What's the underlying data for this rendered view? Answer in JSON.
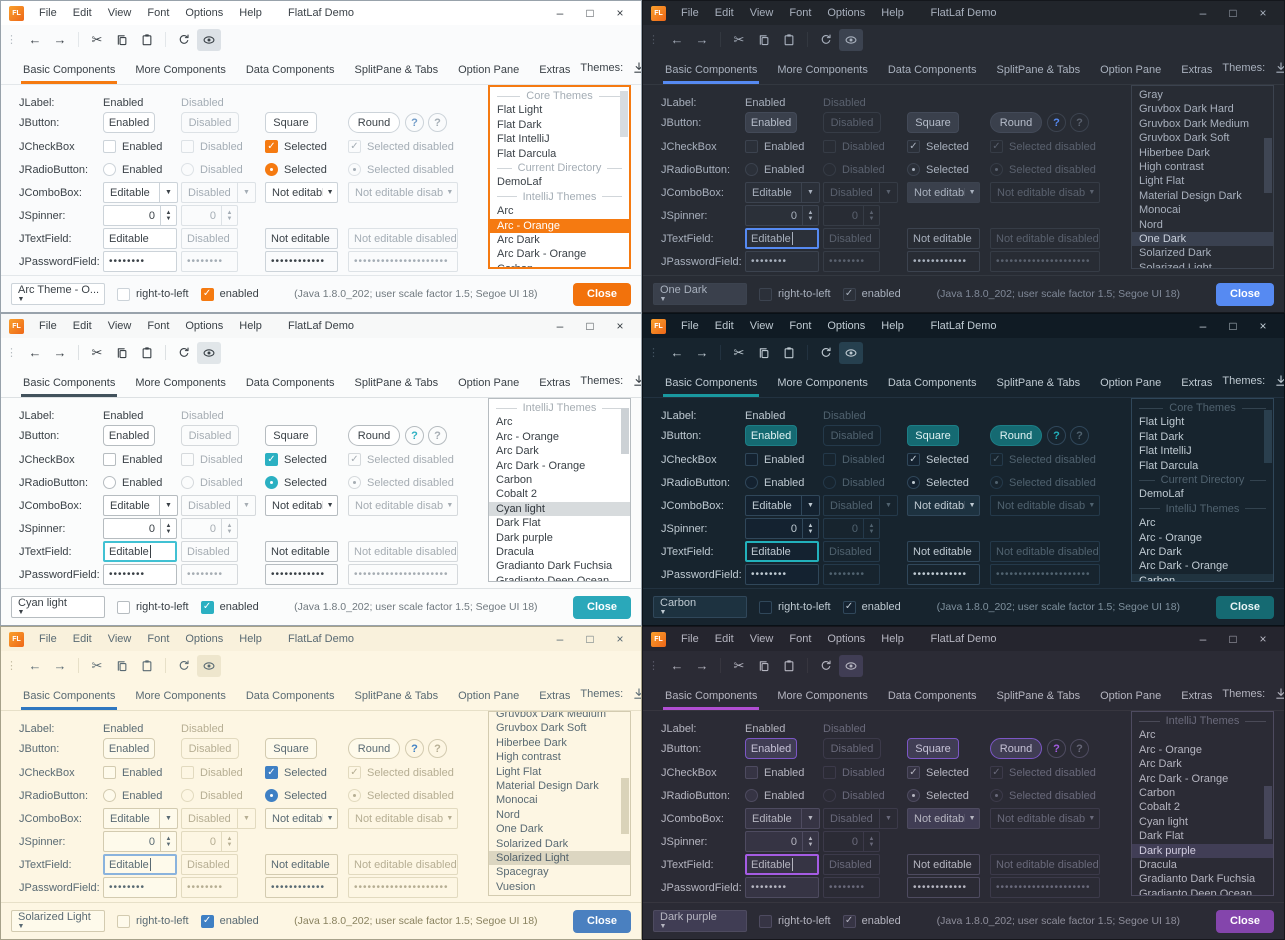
{
  "shared": {
    "logo_text": "FL",
    "window_title": "FlatLaf Demo",
    "menus": [
      "File",
      "Edit",
      "View",
      "Font",
      "Options",
      "Help"
    ],
    "window_controls": {
      "minimize": "–",
      "maximize": "□",
      "close": "×"
    },
    "tabs": [
      "Basic Components",
      "More Components",
      "Data Components",
      "SplitPane & Tabs",
      "Option Pane",
      "Extras"
    ],
    "active_tab": "Basic Components",
    "themes_label": "Themes:",
    "theme_filter": "all",
    "glyphs": {
      "menu_grip": "⋮",
      "back": "←",
      "forward": "→",
      "cut": "✂",
      "check": "✓",
      "combo_arrow": "▼",
      "spinner_up": "▲",
      "spinner_down": "▼",
      "help": "?"
    },
    "grid": {
      "jlabel": {
        "label": "JLabel:",
        "cells": [
          "Enabled",
          "Disabled"
        ]
      },
      "jbutton": {
        "label": "JButton:",
        "cells": [
          "Enabled",
          "Disabled",
          "Square",
          "Round"
        ],
        "help": "?"
      },
      "jcheckbox": {
        "label": "JCheckBox",
        "cells": [
          "Enabled",
          "Disabled",
          "Selected",
          "Selected disabled"
        ]
      },
      "jradiobutton": {
        "label": "JRadioButton:",
        "cells": [
          "Enabled",
          "Disabled",
          "Selected",
          "Selected disabled"
        ]
      },
      "jcombobox": {
        "label": "JComboBox:",
        "cells": [
          "Editable",
          "Disabled",
          "Not editable",
          "Not editable disabled"
        ]
      },
      "jspinner": {
        "label": "JSpinner:",
        "cells": [
          "0",
          "0"
        ]
      },
      "jtextfield": {
        "label": "JTextField:",
        "cells": [
          "Editable",
          "Disabled",
          "Not editable",
          "Not editable disabled"
        ]
      },
      "jpasswordfield": {
        "label": "JPasswordField:",
        "cells": [
          "••••••••",
          "••••••••",
          "••••••••••••",
          "•••••••••••••••••••••"
        ]
      }
    },
    "footer": {
      "rtl_label": "right-to-left",
      "enabled_label": "enabled",
      "status": "(Java 1.8.0_202;  user scale factor 1.5; Segoe UI 18)",
      "close_label": "Close"
    }
  },
  "windows": [
    {
      "id": "arc-orange",
      "theme_name": "Arc - Orange",
      "dark": false,
      "footer_combo": "Arc Theme - O...",
      "textfield_focused": false,
      "caret": false,
      "list_focused": true,
      "list": {
        "selected": "Arc - Orange",
        "thumb": [
          1,
          26
        ],
        "scroll_cut": false,
        "items": [
          {
            "type": "header",
            "label": "Core Themes"
          },
          {
            "type": "item",
            "label": "Flat Light"
          },
          {
            "type": "item",
            "label": "Flat Dark"
          },
          {
            "type": "item",
            "label": "Flat IntelliJ"
          },
          {
            "type": "item",
            "label": "Flat Darcula"
          },
          {
            "type": "header",
            "label": "Current Directory"
          },
          {
            "type": "item",
            "label": "DemoLaf"
          },
          {
            "type": "header",
            "label": "IntelliJ Themes"
          },
          {
            "type": "item",
            "label": "Arc"
          },
          {
            "type": "item",
            "label": "Arc - Orange",
            "selected": true
          },
          {
            "type": "item",
            "label": "Arc Dark"
          },
          {
            "type": "item",
            "label": "Arc Dark - Orange"
          },
          {
            "type": "item",
            "label": "Carbon"
          }
        ]
      },
      "colors": {
        "bg": "#fafbfc",
        "titlebar": "#ffffff",
        "text": "#3b4248",
        "muted": "#a4adb5",
        "accent": "#f57a11",
        "tabline": "#f57a11",
        "btn_bg": "#ffffff",
        "btn_border": "#ccd3d9",
        "btn_text": "#3b4248",
        "dis_border": "#dde2e6",
        "ctrl_border": "#ccd3d9",
        "ctrl_bg": "#ffffff",
        "field_bg": "#ffffff",
        "list_bg": "#ffffff",
        "sel_bg": "#f57a11",
        "sel_text": "#ffffff",
        "close_bg": "#f2720c",
        "close_text": "#ffffff",
        "focus": "#f57a11",
        "thumb": "#d7dce0",
        "sep": "#e3e7ea",
        "toggle": "#dce1e6",
        "help": "#6f9ac8",
        "win_border": "#98a2ab",
        "status": "#70797f"
      }
    },
    {
      "id": "one-dark",
      "theme_name": "One Dark",
      "dark": true,
      "footer_combo": "One Dark",
      "textfield_focused": true,
      "caret": true,
      "list_focused": false,
      "list": {
        "selected": "One Dark",
        "thumb": [
          28,
          31
        ],
        "scroll_cut": false,
        "items": [
          {
            "type": "item",
            "label": "Gray"
          },
          {
            "type": "item",
            "label": "Gruvbox Dark Hard"
          },
          {
            "type": "item",
            "label": "Gruvbox Dark Medium"
          },
          {
            "type": "item",
            "label": "Gruvbox Dark Soft"
          },
          {
            "type": "item",
            "label": "Hiberbee Dark"
          },
          {
            "type": "item",
            "label": "High contrast"
          },
          {
            "type": "item",
            "label": "Light Flat"
          },
          {
            "type": "item",
            "label": "Material Design Dark"
          },
          {
            "type": "item",
            "label": "Monocai"
          },
          {
            "type": "item",
            "label": "Nord"
          },
          {
            "type": "item",
            "label": "One Dark",
            "selected": true
          },
          {
            "type": "item",
            "label": "Solarized Dark"
          },
          {
            "type": "item",
            "label": "Solarized Light"
          }
        ]
      },
      "colors": {
        "bg": "#282c34",
        "titlebar": "#21252b",
        "text": "#a8b0bd",
        "muted": "#5a616e",
        "accent": "#568af2",
        "tabline": "#568af2",
        "btn_bg": "#3a404c",
        "btn_border": "#434a58",
        "btn_text": "#b6bdca",
        "dis_border": "#363c46",
        "ctrl_border": "#3c434f",
        "ctrl_bg": "#3a404c",
        "field_bg": "#2b3039",
        "list_bg": "#282c34",
        "sel_bg": "#3a4150",
        "sel_text": "#c9d0dc",
        "close_bg": "#568af2",
        "close_text": "#ffffff",
        "focus": "#568af2",
        "thumb": "#3f4654",
        "sep": "#333840",
        "toggle": "#3c4350",
        "help": "#568af2",
        "win_border": "#14171c",
        "status": "#808998"
      }
    },
    {
      "id": "cyan-light",
      "theme_name": "Cyan light",
      "dark": false,
      "footer_combo": "Cyan light",
      "textfield_focused": true,
      "caret": true,
      "list_focused": false,
      "list": {
        "selected": "Cyan light",
        "thumb": [
          4,
          26
        ],
        "scroll_cut": false,
        "items": [
          {
            "type": "header",
            "label": "IntelliJ Themes"
          },
          {
            "type": "item",
            "label": "Arc"
          },
          {
            "type": "item",
            "label": "Arc - Orange"
          },
          {
            "type": "item",
            "label": "Arc Dark"
          },
          {
            "type": "item",
            "label": "Arc Dark - Orange"
          },
          {
            "type": "item",
            "label": "Carbon"
          },
          {
            "type": "item",
            "label": "Cobalt 2"
          },
          {
            "type": "item",
            "label": "Cyan light",
            "selected": true
          },
          {
            "type": "item",
            "label": "Dark Flat"
          },
          {
            "type": "item",
            "label": "Dark purple"
          },
          {
            "type": "item",
            "label": "Dracula"
          },
          {
            "type": "item",
            "label": "Gradianto Dark Fuchsia"
          },
          {
            "type": "item",
            "label": "Gradianto Deep Ocean"
          }
        ]
      },
      "colors": {
        "bg": "#fbfcfc",
        "titlebar": "#f7f8f8",
        "text": "#394046",
        "muted": "#a6adb3",
        "accent": "#2bb0c2",
        "tabline": "#42525c",
        "btn_bg": "#ffffff",
        "btn_border": "#b6bcc0",
        "btn_text": "#394046",
        "dis_border": "#d5d9dc",
        "ctrl_border": "#b6bcc0",
        "ctrl_bg": "#ffffff",
        "field_bg": "#ffffff",
        "list_bg": "#ffffff",
        "sel_bg": "#d7dbdd",
        "sel_text": "#30363c",
        "close_bg": "#2aa8ba",
        "close_text": "#ffffff",
        "focus": "#41c1d3",
        "thumb": "#ccd1d5",
        "sep": "#dde1e3",
        "toggle": "#e1e6e9",
        "help": "#2bb0c2",
        "win_border": "#98a2ab",
        "status": "#70797f"
      }
    },
    {
      "id": "carbon",
      "theme_name": "Carbon",
      "dark": true,
      "footer_combo": "Carbon",
      "textfield_focused": true,
      "caret": false,
      "list_focused": false,
      "list": {
        "selected": "Carbon",
        "thumb": [
          5,
          30
        ],
        "scroll_cut": false,
        "items": [
          {
            "type": "header",
            "label": "Core Themes"
          },
          {
            "type": "item",
            "label": "Flat Light"
          },
          {
            "type": "item",
            "label": "Flat Dark"
          },
          {
            "type": "item",
            "label": "Flat IntelliJ"
          },
          {
            "type": "item",
            "label": "Flat Darcula"
          },
          {
            "type": "header",
            "label": "Current Directory"
          },
          {
            "type": "item",
            "label": "DemoLaf"
          },
          {
            "type": "header",
            "label": "IntelliJ Themes"
          },
          {
            "type": "item",
            "label": "Arc"
          },
          {
            "type": "item",
            "label": "Arc - Orange"
          },
          {
            "type": "item",
            "label": "Arc Dark"
          },
          {
            "type": "item",
            "label": "Arc Dark - Orange"
          },
          {
            "type": "item",
            "label": "Carbon",
            "selected": true
          }
        ]
      },
      "colors": {
        "bg": "#17242e",
        "titlebar": "#101b24",
        "text": "#bfcad2",
        "muted": "#50626f",
        "accent": "#1a8d95",
        "tabline": "#19989f",
        "btn_bg": "#156a72",
        "btn_border": "#1d7e86",
        "btn_text": "#e0f2f3",
        "dis_border": "#24394a",
        "ctrl_border": "#30475a",
        "ctrl_bg": "#1d3240",
        "field_bg": "#142230",
        "list_bg": "#17242e",
        "sel_bg": "#20333f",
        "sel_text": "#d4dee4",
        "close_bg": "#156a72",
        "close_text": "#e8f4f5",
        "focus": "#22b1bc",
        "thumb": "#2a3f4e",
        "sep": "#223240",
        "toggle": "#26404f",
        "help": "#22b1bc",
        "win_border": "#091016",
        "status": "#7e909d"
      }
    },
    {
      "id": "solarized-light",
      "theme_name": "Solarized Light",
      "dark": false,
      "footer_combo": "Solarized Light",
      "textfield_focused": true,
      "caret": true,
      "list_focused": false,
      "list": {
        "selected": "Solarized Light",
        "thumb": [
          36,
          31
        ],
        "scroll_cut": true,
        "items": [
          {
            "type": "item",
            "label": "Gruvbox Dark Medium"
          },
          {
            "type": "item",
            "label": "Gruvbox Dark Soft"
          },
          {
            "type": "item",
            "label": "Hiberbee Dark"
          },
          {
            "type": "item",
            "label": "High contrast"
          },
          {
            "type": "item",
            "label": "Light Flat"
          },
          {
            "type": "item",
            "label": "Material Design Dark"
          },
          {
            "type": "item",
            "label": "Monocai"
          },
          {
            "type": "item",
            "label": "Nord"
          },
          {
            "type": "item",
            "label": "One Dark"
          },
          {
            "type": "item",
            "label": "Solarized Dark"
          },
          {
            "type": "item",
            "label": "Solarized Light",
            "selected": true
          },
          {
            "type": "item",
            "label": "Spacegray"
          },
          {
            "type": "item",
            "label": "Vuesion"
          }
        ]
      },
      "colors": {
        "bg": "#fdf6e3",
        "titlebar": "#f9f1dc",
        "text": "#596a73",
        "muted": "#b6ae93",
        "accent": "#3f80c4",
        "tabline": "#2f77c0",
        "btn_bg": "#fefaeb",
        "btn_border": "#d3cbb0",
        "btn_text": "#596a73",
        "dis_border": "#e2dabf",
        "ctrl_border": "#d3cbb0",
        "ctrl_bg": "#fefaeb",
        "field_bg": "#fefaeb",
        "list_bg": "#fdf6e3",
        "sel_bg": "#dcd6c1",
        "sel_text": "#51616b",
        "close_bg": "#4a80c0",
        "close_text": "#ffffff",
        "focus": "#8ab3dd",
        "thumb": "#dad3b9",
        "sep": "#e7e0c8",
        "toggle": "#eee6cd",
        "help": "#3f80c4",
        "win_border": "#a6a18a",
        "status": "#89825f"
      }
    },
    {
      "id": "dark-purple",
      "theme_name": "Dark purple",
      "dark": true,
      "footer_combo": "Dark purple",
      "textfield_focused": true,
      "caret": true,
      "list_focused": false,
      "list": {
        "selected": "Dark purple",
        "thumb": [
          40,
          30
        ],
        "scroll_cut": false,
        "items": [
          {
            "type": "header",
            "label": "IntelliJ Themes"
          },
          {
            "type": "item",
            "label": "Arc"
          },
          {
            "type": "item",
            "label": "Arc - Orange"
          },
          {
            "type": "item",
            "label": "Arc Dark"
          },
          {
            "type": "item",
            "label": "Arc Dark - Orange"
          },
          {
            "type": "item",
            "label": "Carbon"
          },
          {
            "type": "item",
            "label": "Cobalt 2"
          },
          {
            "type": "item",
            "label": "Cyan light"
          },
          {
            "type": "item",
            "label": "Dark Flat"
          },
          {
            "type": "item",
            "label": "Dark purple",
            "selected": true
          },
          {
            "type": "item",
            "label": "Dracula"
          },
          {
            "type": "item",
            "label": "Gradianto Dark Fuchsia"
          },
          {
            "type": "item",
            "label": "Gradianto Deep Ocean"
          }
        ]
      },
      "colors": {
        "bg": "#2b2b35",
        "titlebar": "#25252e",
        "text": "#b5b5c0",
        "muted": "#69697a",
        "accent": "#9a50d8",
        "tabline": "#b14ed3",
        "btn_bg": "#403d54",
        "btn_border": "#7c57c6",
        "btn_text": "#c6c2d6",
        "dis_border": "#3c3a4a",
        "ctrl_border": "#4e4b60",
        "ctrl_bg": "#403d54",
        "field_bg": "#363444",
        "list_bg": "#2b2b35",
        "sel_bg": "#413e56",
        "sel_text": "#d0ccdf",
        "close_bg": "#8445ac",
        "close_text": "#ffffff",
        "focus": "#a55ce4",
        "thumb": "#46465a",
        "sep": "#37363f",
        "toggle": "#403d54",
        "help": "#a55ce4",
        "win_border": "#16161c",
        "status": "#8e8e9b"
      }
    }
  ]
}
